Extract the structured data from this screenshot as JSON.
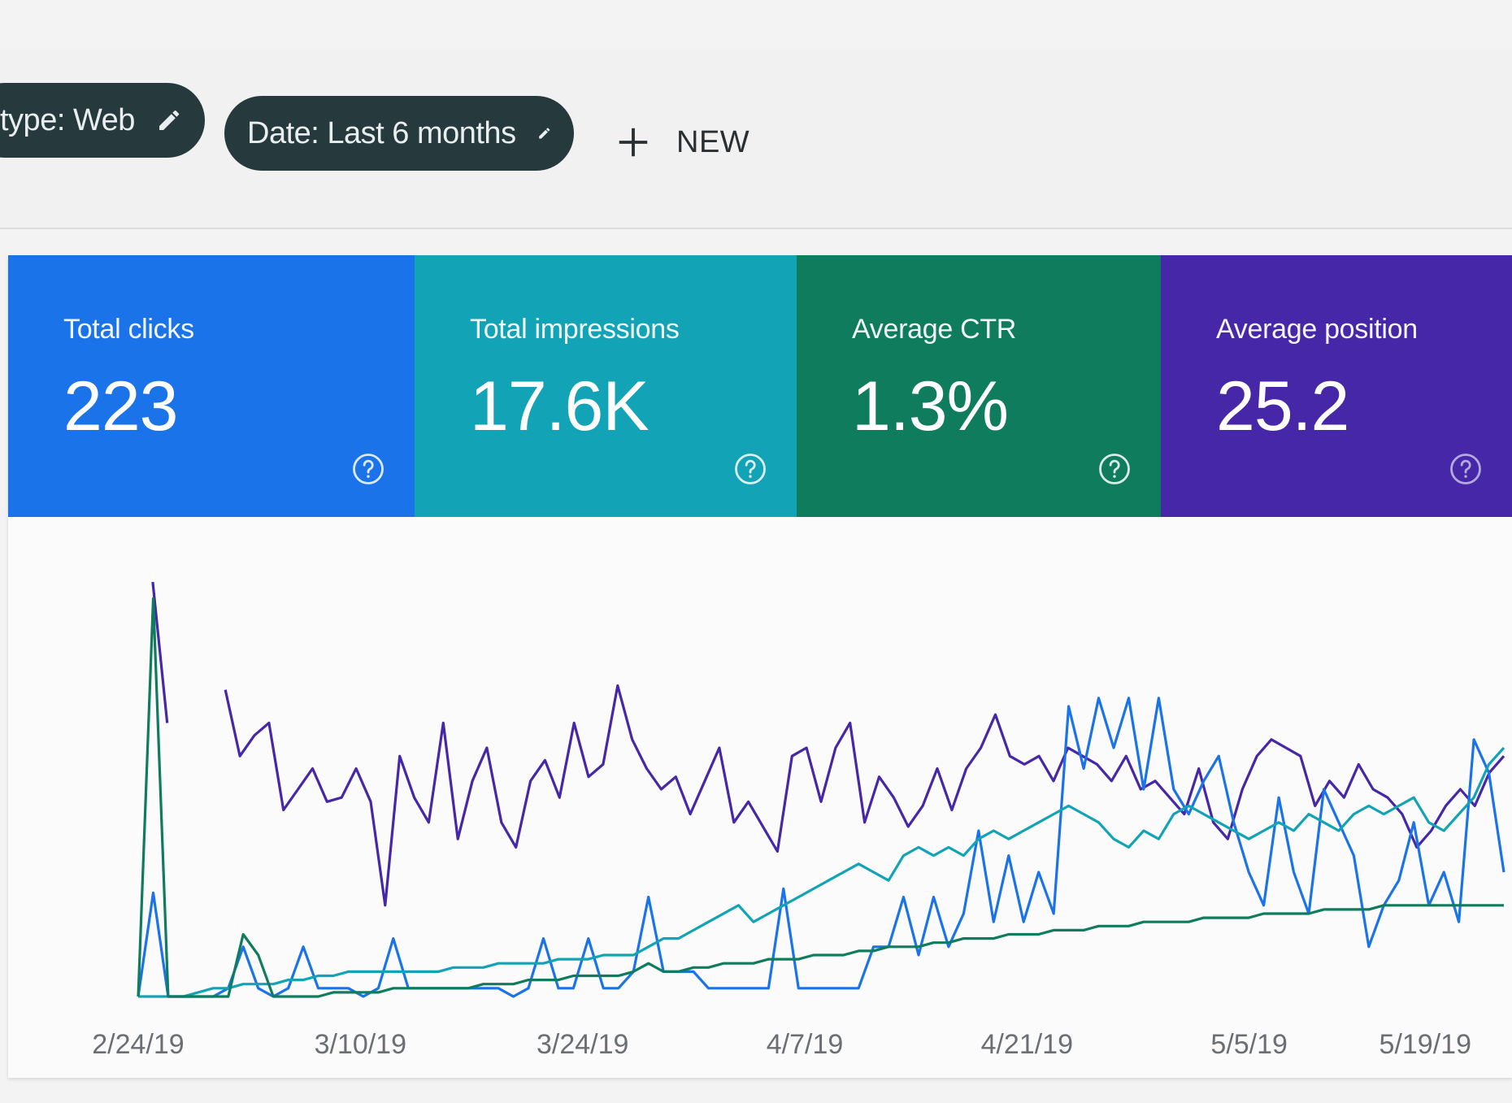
{
  "filters": {
    "type_chip": "type: Web",
    "date_chip": "Date: Last 6 months",
    "new_label": "NEW"
  },
  "metrics": [
    {
      "title": "Total clicks",
      "value": "223",
      "color": "#1a73e8"
    },
    {
      "title": "Total impressions",
      "value": "17.6K",
      "color": "#13a3b6"
    },
    {
      "title": "Average CTR",
      "value": "1.3%",
      "color": "#0e7c5d"
    },
    {
      "title": "Average position",
      "value": "25.2",
      "color": "#4527a8"
    }
  ],
  "chart_data": {
    "type": "line",
    "x_tick_labels": [
      "2/24/19",
      "3/10/19",
      "3/24/19",
      "4/7/19",
      "4/21/19",
      "5/5/19",
      "5/19/19"
    ],
    "ylim": [
      0,
      100
    ],
    "grid": false,
    "series": [
      {
        "color": "#4527a8",
        "values": [
          null,
          100,
          66,
          null,
          null,
          null,
          74,
          58,
          63,
          66,
          45,
          50,
          55,
          47,
          48,
          55,
          47,
          22,
          58,
          48,
          42,
          66,
          38,
          52,
          60,
          42,
          36,
          52,
          57,
          48,
          66,
          53,
          56,
          75,
          62,
          55,
          50,
          53,
          44,
          52,
          60,
          42,
          47,
          41,
          35,
          58,
          60,
          47,
          60,
          66,
          42,
          53,
          48,
          41,
          46,
          55,
          45,
          55,
          60,
          68,
          58,
          56,
          58,
          52,
          60,
          58,
          56,
          52,
          58,
          50,
          52,
          48,
          44,
          55,
          42,
          38,
          50,
          58,
          62,
          60,
          58,
          46,
          52,
          48,
          56,
          50,
          48,
          44,
          36,
          40,
          46,
          50,
          46,
          54,
          58
        ]
      },
      {
        "color": "#1a73e8",
        "values": [
          0,
          25,
          0,
          0,
          0,
          0,
          2,
          12,
          2,
          0,
          2,
          12,
          2,
          2,
          2,
          0,
          2,
          14,
          2,
          2,
          2,
          2,
          2,
          2,
          2,
          0,
          2,
          14,
          2,
          2,
          14,
          2,
          2,
          6,
          24,
          6,
          6,
          6,
          2,
          2,
          2,
          2,
          2,
          26,
          2,
          2,
          2,
          2,
          2,
          12,
          12,
          24,
          10,
          24,
          12,
          20,
          40,
          18,
          34,
          18,
          30,
          20,
          70,
          55,
          72,
          60,
          72,
          50,
          72,
          50,
          44,
          52,
          58,
          42,
          30,
          22,
          48,
          30,
          20,
          50,
          42,
          34,
          12,
          22,
          28,
          42,
          22,
          30,
          18,
          62,
          54,
          30
        ]
      },
      {
        "color": "#12a4b5",
        "values": [
          0,
          0,
          0,
          0,
          1,
          2,
          2,
          3,
          3,
          3,
          4,
          4,
          5,
          5,
          6,
          6,
          6,
          6,
          6,
          6,
          6,
          7,
          7,
          7,
          8,
          8,
          8,
          8,
          9,
          9,
          9,
          10,
          10,
          10,
          12,
          14,
          14,
          16,
          18,
          20,
          22,
          18,
          20,
          22,
          24,
          26,
          28,
          30,
          32,
          30,
          28,
          34,
          36,
          34,
          36,
          34,
          38,
          40,
          38,
          40,
          42,
          44,
          46,
          44,
          42,
          38,
          36,
          40,
          38,
          44,
          46,
          44,
          42,
          40,
          38,
          40,
          42,
          40,
          44,
          42,
          40,
          44,
          46,
          44,
          46,
          48,
          42,
          40,
          44,
          48,
          56,
          60
        ]
      },
      {
        "color": "#0e7c5d",
        "values": [
          0,
          96,
          0,
          0,
          0,
          0,
          0,
          15,
          10,
          0,
          0,
          0,
          0,
          1,
          1,
          1,
          1,
          2,
          2,
          2,
          2,
          2,
          2,
          3,
          3,
          3,
          4,
          4,
          4,
          5,
          5,
          5,
          5,
          6,
          8,
          6,
          6,
          7,
          7,
          8,
          8,
          8,
          9,
          9,
          9,
          10,
          10,
          10,
          11,
          11,
          12,
          12,
          12,
          13,
          13,
          14,
          14,
          14,
          15,
          15,
          15,
          16,
          16,
          16,
          17,
          17,
          17,
          18,
          18,
          18,
          18,
          19,
          19,
          19,
          19,
          20,
          20,
          20,
          20,
          21,
          21,
          21,
          21,
          22,
          22,
          22,
          22,
          22,
          22,
          22,
          22,
          22
        ]
      }
    ]
  }
}
